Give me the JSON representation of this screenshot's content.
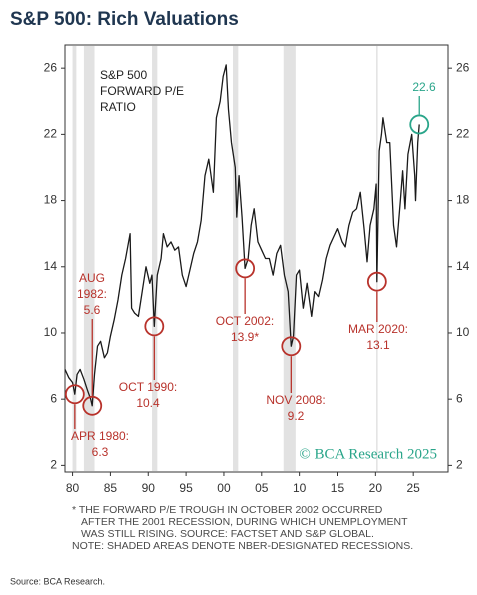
{
  "chart_data": {
    "type": "line",
    "title": "S&P 500: Rich Valuations",
    "panel_label": [
      "S&P 500",
      "FORWARD P/E",
      "RATIO"
    ],
    "watermark": "© BCA Research 2025",
    "footnotes": [
      "* THE FORWARD P/E TROUGH IN OCTOBER 2002 OCCURRED",
      "AFTER THE 2001 RECESSION, DURING WHICH UNEMPLOYMENT",
      "WAS STILL RISING. SOURCE: FACTSET AND S&P GLOBAL.",
      "NOTE: SHADED AREAS DENOTE NBER-DESIGNATED RECESSIONS."
    ],
    "source": "Source: BCA Research.",
    "color": "#1a1a1a",
    "recession_color": "#e2e2e2",
    "recessions": [
      [
        1980.0,
        1980.5
      ],
      [
        1981.5,
        1982.9
      ],
      [
        1990.5,
        1991.2
      ],
      [
        2001.2,
        2001.9
      ],
      [
        2007.9,
        2009.5
      ],
      [
        2020.1,
        2020.3
      ]
    ],
    "x": [
      1979.0,
      1979.5,
      1980.0,
      1980.3,
      1980.6,
      1981.0,
      1981.5,
      1982.0,
      1982.4,
      1982.6,
      1982.9,
      1983.3,
      1983.7,
      1984.2,
      1984.6,
      1985.0,
      1985.5,
      1986.0,
      1986.5,
      1987.0,
      1987.6,
      1987.8,
      1988.2,
      1988.7,
      1989.2,
      1989.7,
      1990.2,
      1990.5,
      1990.8,
      1991.2,
      1991.7,
      1992.0,
      1992.5,
      1993.0,
      1993.5,
      1994.0,
      1994.5,
      1995.0,
      1995.5,
      1996.0,
      1996.5,
      1997.0,
      1997.5,
      1998.0,
      1998.6,
      1999.0,
      1999.5,
      1999.9,
      2000.3,
      2000.6,
      2001.0,
      2001.5,
      2001.7,
      2002.0,
      2002.4,
      2002.8,
      2003.2,
      2003.6,
      2004.0,
      2004.5,
      2005.0,
      2005.5,
      2006.0,
      2006.5,
      2007.0,
      2007.5,
      2008.0,
      2008.5,
      2008.9,
      2009.2,
      2009.6,
      2010.0,
      2010.5,
      2011.0,
      2011.6,
      2012.0,
      2012.5,
      2013.0,
      2013.5,
      2014.0,
      2014.5,
      2015.0,
      2015.6,
      2016.0,
      2016.5,
      2017.0,
      2017.5,
      2018.0,
      2018.5,
      2018.9,
      2019.3,
      2019.8,
      2020.1,
      2020.2,
      2020.5,
      2020.8,
      2021.0,
      2021.5,
      2021.9,
      2022.4,
      2022.8,
      2023.3,
      2023.6,
      2023.9,
      2024.3,
      2024.8,
      2025.2,
      2025.3,
      2025.6,
      2025.8
    ],
    "values": [
      7.8,
      7.3,
      7.0,
      6.3,
      7.5,
      7.8,
      7.2,
      6.5,
      6.0,
      5.6,
      7.5,
      9.2,
      9.5,
      8.5,
      8.8,
      9.8,
      10.8,
      12.0,
      13.5,
      14.5,
      16.0,
      11.5,
      11.2,
      11.0,
      12.5,
      14.0,
      13.0,
      13.5,
      10.4,
      13.5,
      14.5,
      16.0,
      15.2,
      15.5,
      15.0,
      15.2,
      13.5,
      12.8,
      13.8,
      14.8,
      15.5,
      16.8,
      19.5,
      20.5,
      18.5,
      23.0,
      24.0,
      25.5,
      26.2,
      23.5,
      21.5,
      20.0,
      17.0,
      19.5,
      17.0,
      13.9,
      14.5,
      16.5,
      17.5,
      15.5,
      15.0,
      14.5,
      14.5,
      13.5,
      14.8,
      15.3,
      13.5,
      12.5,
      9.2,
      9.8,
      13.5,
      13.8,
      11.5,
      13.0,
      11.0,
      12.5,
      12.2,
      13.2,
      14.5,
      15.3,
      15.8,
      16.3,
      15.5,
      15.2,
      16.5,
      17.3,
      17.5,
      18.5,
      16.3,
      14.3,
      16.5,
      17.5,
      19.0,
      13.1,
      21.0,
      22.0,
      23.0,
      21.5,
      21.5,
      16.5,
      15.2,
      18.0,
      19.8,
      17.5,
      20.8,
      22.0,
      19.5,
      18.0,
      21.5,
      22.6
    ],
    "annotations": [
      {
        "x": 1980.3,
        "y": 6.3,
        "label": [
          "APR 1980:"
        ],
        "value_label": "6.3",
        "color": "#b8322b"
      },
      {
        "x": 1982.6,
        "y": 5.6,
        "label": [
          "AUG",
          "1982:"
        ],
        "value_label": "5.6",
        "color": "#b8322b"
      },
      {
        "x": 1990.8,
        "y": 10.4,
        "label": [
          "OCT 1990:"
        ],
        "value_label": "10.4",
        "color": "#b8322b"
      },
      {
        "x": 2002.8,
        "y": 13.9,
        "label": [
          "OCT 2002:"
        ],
        "value_label": "13.9*",
        "color": "#b8322b"
      },
      {
        "x": 2008.9,
        "y": 9.2,
        "label": [
          "NOV 2008:"
        ],
        "value_label": "9.2",
        "color": "#b8322b"
      },
      {
        "x": 2020.2,
        "y": 13.1,
        "label": [
          "MAR 2020:"
        ],
        "value_label": "13.1",
        "color": "#b8322b"
      },
      {
        "x": 2025.8,
        "y": 22.6,
        "label": [],
        "value_label": "22.6",
        "color": "#2aa58a"
      }
    ],
    "xlim": [
      1979.0,
      2029.6
    ],
    "xticks": [
      {
        "value": 1980,
        "label": "80"
      },
      {
        "value": 1985,
        "label": "85"
      },
      {
        "value": 1990,
        "label": "90"
      },
      {
        "value": 1995,
        "label": "95"
      },
      {
        "value": 2000,
        "label": "00"
      },
      {
        "value": 2005,
        "label": "05"
      },
      {
        "value": 2010,
        "label": "10"
      },
      {
        "value": 2015,
        "label": "15"
      },
      {
        "value": 2020,
        "label": "20"
      },
      {
        "value": 2025,
        "label": "25"
      }
    ],
    "ylim": [
      1.6,
      27.4
    ],
    "yticks": [
      2,
      6,
      10,
      14,
      18,
      22,
      26
    ],
    "y2lim": [
      1.6,
      27.4
    ],
    "y2ticks": [
      2,
      6,
      10,
      14,
      18,
      22,
      26
    ]
  }
}
